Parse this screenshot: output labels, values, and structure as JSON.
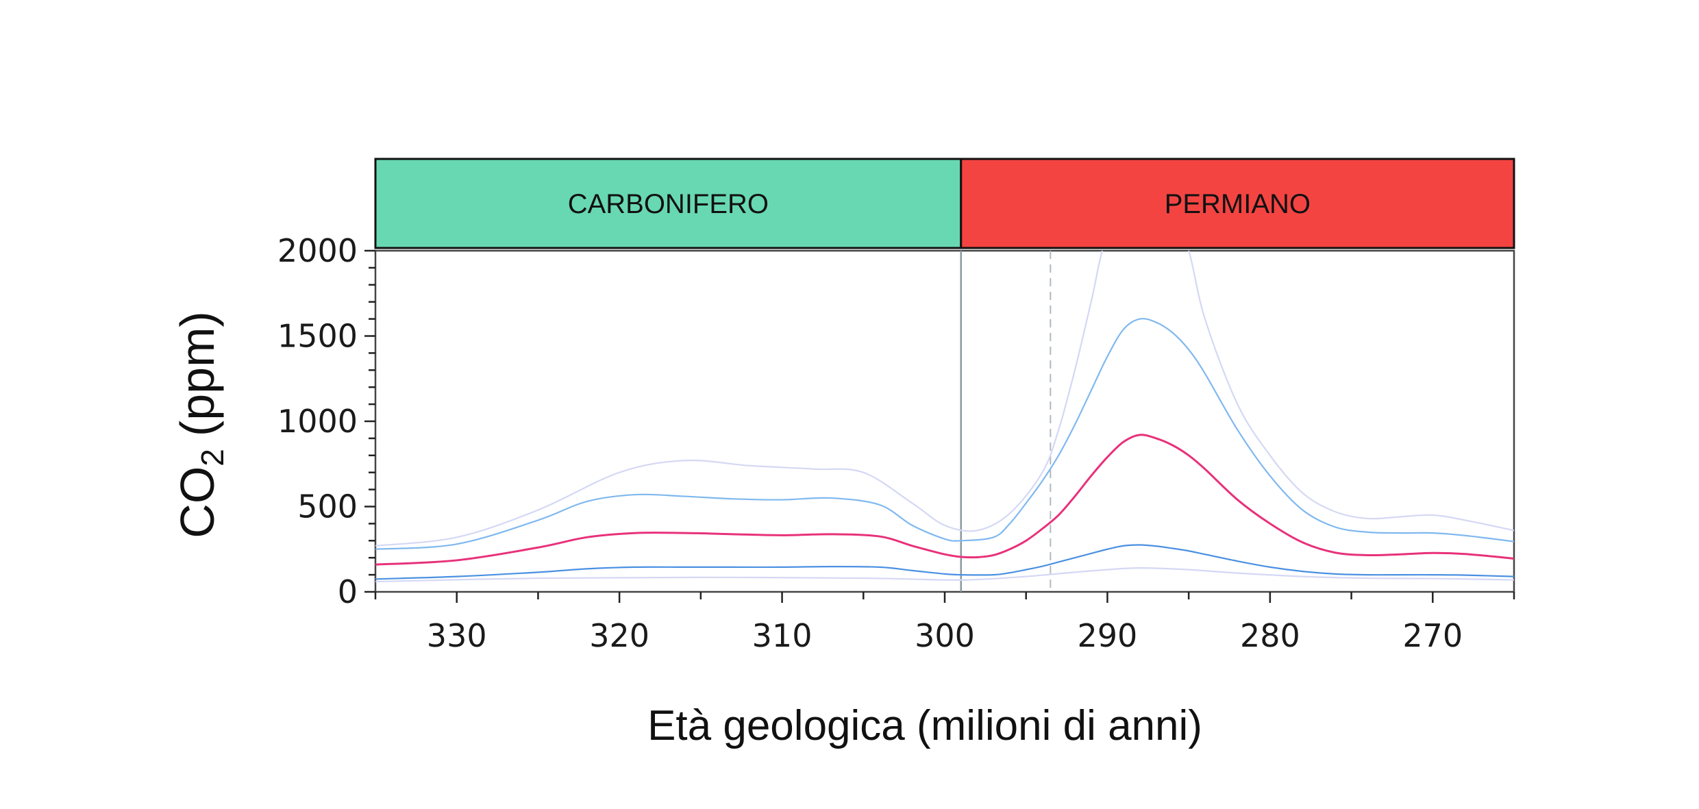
{
  "chart_data": {
    "type": "line",
    "xlabel": "Età geologica (milioni di anni)",
    "ylabel": {
      "main": "CO",
      "sub": "2",
      "unit": "(ppm)"
    },
    "xlim": [
      335,
      265
    ],
    "ylim": [
      0,
      2000
    ],
    "x_ticks": [
      330,
      320,
      310,
      300,
      290,
      280,
      270
    ],
    "y_ticks": [
      0,
      500,
      1000,
      1500,
      2000
    ],
    "x_reversed": true,
    "grid": false,
    "boundary_line": 299,
    "dashed_line": 293.5,
    "periods": [
      {
        "label": "CARBONIFERO",
        "start": 335,
        "end": 299,
        "color": "#68d8b2"
      },
      {
        "label": "PERMIANO",
        "start": 299,
        "end": 265,
        "color": "#f34442"
      }
    ],
    "series": [
      {
        "role": "outer-upper",
        "color": "#d4d8f4",
        "x": [
          335,
          330,
          325,
          320,
          316,
          312,
          308,
          305,
          302,
          300,
          298,
          296,
          294,
          293,
          292,
          291,
          290,
          288,
          286,
          285,
          284,
          282,
          280,
          278,
          276,
          274,
          272,
          270,
          268,
          265
        ],
        "y": [
          270,
          320,
          480,
          700,
          770,
          740,
          720,
          700,
          520,
          390,
          360,
          460,
          700,
          950,
          1300,
          1700,
          2100,
          2500,
          2200,
          2000,
          1600,
          1100,
          800,
          580,
          470,
          430,
          440,
          450,
          420,
          360
        ]
      },
      {
        "role": "upper",
        "color": "#7fb8ef",
        "x": [
          335,
          330,
          325,
          322,
          319,
          316,
          313,
          310,
          307,
          304,
          302,
          300,
          299,
          297,
          296,
          295,
          294,
          293,
          292,
          291,
          290,
          289,
          288,
          287,
          286,
          285,
          284,
          282,
          280,
          278,
          276,
          274,
          272,
          270,
          268,
          265
        ],
        "y": [
          250,
          280,
          420,
          530,
          570,
          560,
          545,
          540,
          550,
          510,
          390,
          310,
          300,
          320,
          400,
          520,
          650,
          800,
          980,
          1180,
          1380,
          1540,
          1600,
          1580,
          1520,
          1420,
          1280,
          950,
          680,
          480,
          380,
          350,
          345,
          345,
          330,
          295
        ]
      },
      {
        "role": "median",
        "color": "#e8317a",
        "x": [
          335,
          330,
          325,
          322,
          319,
          316,
          313,
          310,
          307,
          304,
          302,
          300,
          299,
          298,
          297,
          296,
          295,
          294,
          293,
          292,
          291,
          290,
          289,
          288,
          287,
          286,
          285,
          284,
          282,
          280,
          278,
          276,
          274,
          272,
          270,
          268,
          265
        ],
        "y": [
          160,
          185,
          260,
          320,
          345,
          345,
          338,
          332,
          338,
          325,
          270,
          220,
          205,
          203,
          215,
          250,
          300,
          370,
          450,
          560,
          680,
          790,
          880,
          920,
          900,
          860,
          800,
          720,
          540,
          400,
          290,
          230,
          215,
          220,
          228,
          222,
          195
        ]
      },
      {
        "role": "lower",
        "color": "#4a90e2",
        "x": [
          335,
          330,
          325,
          322,
          319,
          316,
          313,
          310,
          307,
          304,
          302,
          300,
          299,
          297,
          296,
          295,
          294,
          293,
          292,
          291,
          290,
          289,
          288,
          287,
          286,
          285,
          284,
          282,
          280,
          278,
          276,
          274,
          272,
          270,
          268,
          265
        ],
        "y": [
          75,
          90,
          115,
          135,
          145,
          145,
          145,
          145,
          148,
          145,
          125,
          105,
          100,
          100,
          112,
          130,
          150,
          175,
          200,
          225,
          250,
          270,
          275,
          268,
          255,
          240,
          220,
          180,
          145,
          120,
          105,
          100,
          100,
          100,
          98,
          90
        ]
      },
      {
        "role": "outer-lower",
        "color": "#d4d8f4",
        "x": [
          335,
          325,
          315,
          305,
          300,
          298,
          295,
          292,
          290,
          288,
          285,
          282,
          278,
          274,
          270,
          265
        ],
        "y": [
          60,
          80,
          85,
          80,
          70,
          72,
          90,
          115,
          130,
          140,
          130,
          110,
          90,
          80,
          78,
          70
        ]
      }
    ]
  }
}
